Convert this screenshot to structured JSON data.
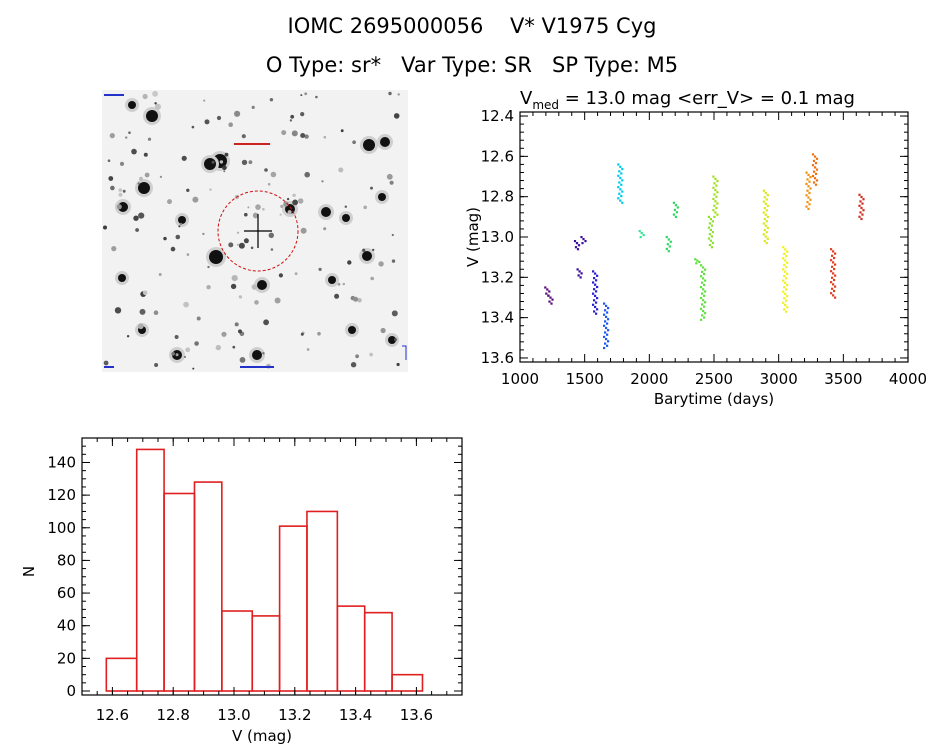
{
  "header": {
    "line1": "IOMC 2695000056    V* V1975 Cyg",
    "line2": "O Type: sr*   Var Type: SR   SP Type: M5"
  },
  "lightcurve": {
    "title_v": "V",
    "title_sub": "med",
    "title_rest": " = 13.0 mag <err_V> = 0.1 mag"
  },
  "chart_data": [
    {
      "type": "scatter",
      "title": "Vmed = 13.0 mag <err_V> = 0.1 mag",
      "xlabel": "Barytime (days)",
      "ylabel": "V (mag)",
      "xlim": [
        1000,
        4000
      ],
      "ylim": [
        13.62,
        12.38
      ],
      "y_inverted": true,
      "xticks": [
        "1000",
        "1500",
        "2000",
        "2500",
        "3000",
        "3500",
        "4000"
      ],
      "yticks": [
        "12.4",
        "12.6",
        "12.8",
        "13.0",
        "13.2",
        "13.4",
        "13.6"
      ],
      "clusters": [
        {
          "x": 1210,
          "y_min": 13.25,
          "y_max": 13.29,
          "color": "#5a0d78"
        },
        {
          "x": 1235,
          "y_min": 13.29,
          "y_max": 13.33,
          "color": "#5a0d78"
        },
        {
          "x": 1440,
          "y_min": 13.02,
          "y_max": 13.06,
          "color": "#3b0fa0"
        },
        {
          "x": 1460,
          "y_min": 13.16,
          "y_max": 13.2,
          "color": "#3b0fa0"
        },
        {
          "x": 1490,
          "y_min": 13.0,
          "y_max": 13.03,
          "color": "#3b0fa0"
        },
        {
          "x": 1580,
          "y_min": 13.17,
          "y_max": 13.38,
          "color": "#2a1fd0"
        },
        {
          "x": 1665,
          "y_min": 13.33,
          "y_max": 13.55,
          "color": "#1a58f0"
        },
        {
          "x": 1775,
          "y_min": 12.64,
          "y_max": 12.83,
          "color": "#00c8e8"
        },
        {
          "x": 1940,
          "y_min": 12.97,
          "y_max": 13.0,
          "color": "#30e890"
        },
        {
          "x": 2150,
          "y_min": 13.0,
          "y_max": 13.07,
          "color": "#30d860"
        },
        {
          "x": 2205,
          "y_min": 12.83,
          "y_max": 12.9,
          "color": "#30d860"
        },
        {
          "x": 2370,
          "y_min": 13.11,
          "y_max": 13.13,
          "color": "#60e040"
        },
        {
          "x": 2415,
          "y_min": 13.14,
          "y_max": 13.41,
          "color": "#60e040"
        },
        {
          "x": 2475,
          "y_min": 12.9,
          "y_max": 13.05,
          "color": "#90e030"
        },
        {
          "x": 2510,
          "y_min": 12.7,
          "y_max": 12.9,
          "color": "#a0e020"
        },
        {
          "x": 2900,
          "y_min": 12.77,
          "y_max": 13.03,
          "color": "#d8e820"
        },
        {
          "x": 3050,
          "y_min": 13.05,
          "y_max": 13.37,
          "color": "#f0f020"
        },
        {
          "x": 3230,
          "y_min": 12.68,
          "y_max": 12.86,
          "color": "#f09010"
        },
        {
          "x": 3280,
          "y_min": 12.59,
          "y_max": 12.74,
          "color": "#f07010"
        },
        {
          "x": 3420,
          "y_min": 13.06,
          "y_max": 13.3,
          "color": "#e04020"
        },
        {
          "x": 3640,
          "y_min": 12.79,
          "y_max": 12.91,
          "color": "#d03020"
        }
      ]
    },
    {
      "type": "bar",
      "xlabel": "V (mag)",
      "ylabel": "N",
      "xlim": [
        12.5,
        13.75
      ],
      "ylim": [
        0,
        155
      ],
      "xticks": [
        "12.6",
        "12.8",
        "13.0",
        "13.2",
        "13.4",
        "13.6"
      ],
      "yticks": [
        "0",
        "20",
        "40",
        "60",
        "80",
        "100",
        "120",
        "140"
      ],
      "bin_edges": [
        12.58,
        12.68,
        12.77,
        12.87,
        12.96,
        13.06,
        13.15,
        13.24,
        13.34,
        13.43,
        13.52,
        13.62
      ],
      "values": [
        20,
        148,
        121,
        128,
        49,
        46,
        101,
        110,
        52,
        48,
        10
      ],
      "color": "#e02020"
    }
  ]
}
